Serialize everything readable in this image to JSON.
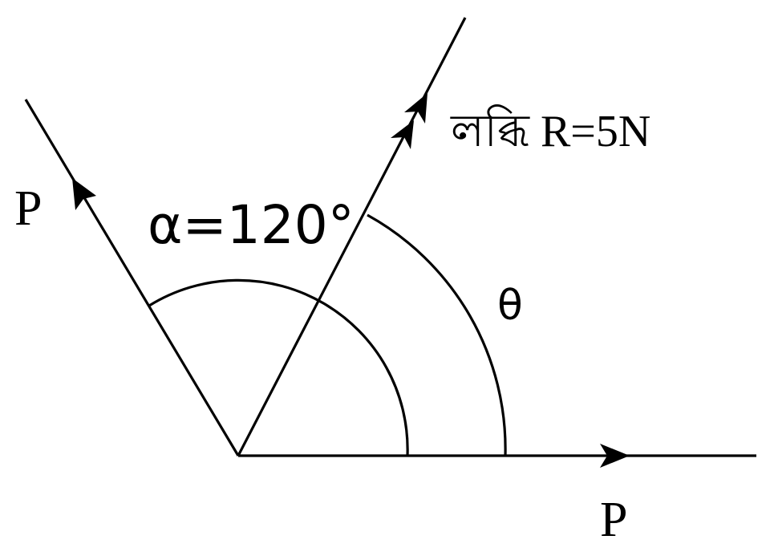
{
  "labels": {
    "force_left": "P",
    "force_bottom": "P",
    "resultant": "লব্ধি R=5N",
    "angle_alpha": "α=120°",
    "angle_theta": "θ"
  },
  "colors": {
    "stroke": "#000000",
    "background": "#ffffff"
  }
}
